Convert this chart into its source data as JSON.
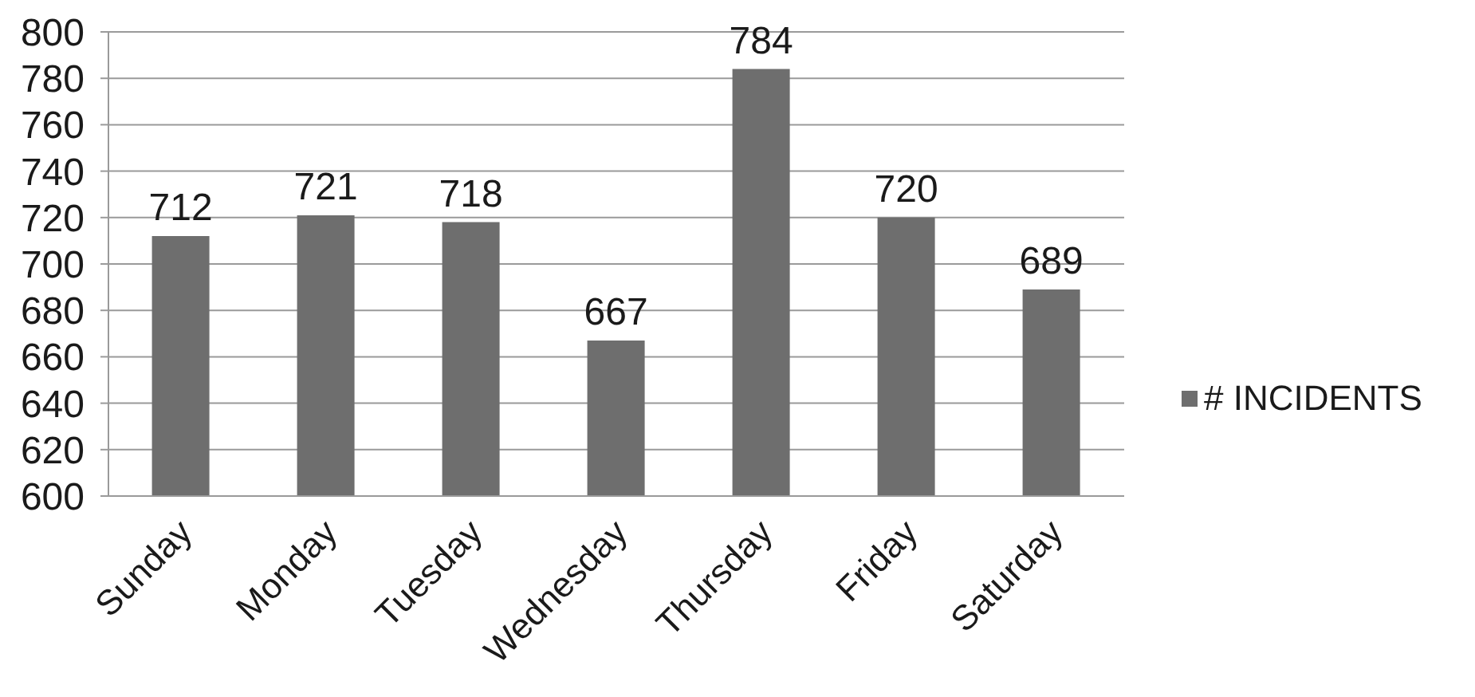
{
  "chart_data": {
    "type": "bar",
    "categories": [
      "Sunday",
      "Monday",
      "Tuesday",
      "Wednesday",
      "Thursday",
      "Friday",
      "Saturday"
    ],
    "series": [
      {
        "name": "# INCIDENTS",
        "color": "#6e6e6e",
        "values": [
          712,
          721,
          718,
          667,
          784,
          720,
          689
        ]
      }
    ],
    "ylim": [
      600,
      800
    ],
    "yticks": [
      600,
      620,
      640,
      660,
      680,
      700,
      720,
      740,
      760,
      780,
      800
    ],
    "grid": "y",
    "legend": "right",
    "data_labels": true
  }
}
